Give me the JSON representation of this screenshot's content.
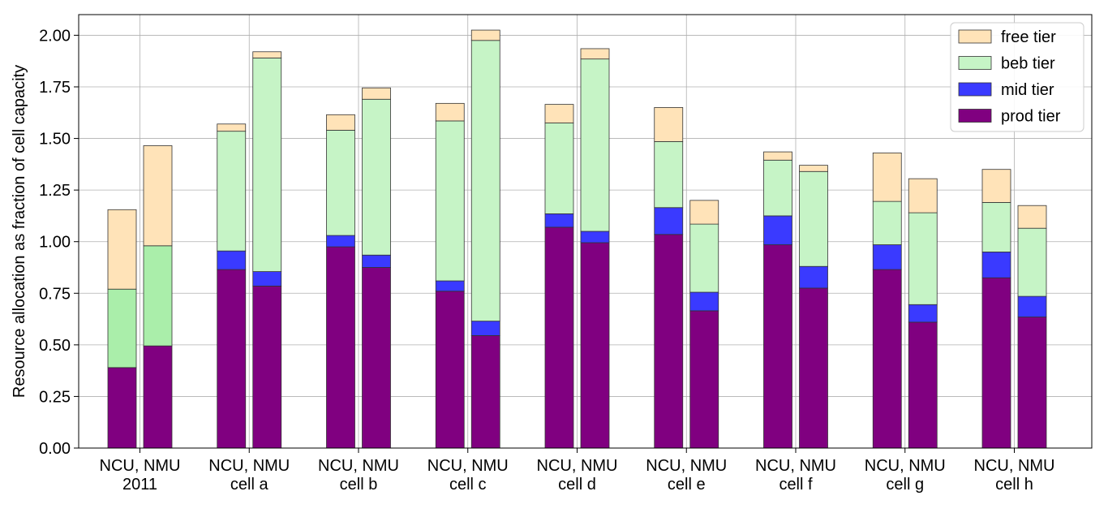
{
  "chart_data": {
    "type": "bar",
    "stacked": true,
    "grouped": true,
    "ylabel": "Resource allocation as fraction of cell capacity",
    "xlabel": "",
    "ylim": [
      0,
      2.1
    ],
    "yticks": [
      0,
      0.25,
      0.5,
      0.75,
      1.0,
      1.25,
      1.5,
      1.75,
      2.0
    ],
    "ytick_labels": [
      "0.00",
      "0.25",
      "0.50",
      "0.75",
      "1.00",
      "1.25",
      "1.50",
      "1.75",
      "2.00"
    ],
    "grid": true,
    "legend_position": "top-right",
    "group_labels": [
      "NCU, NMU",
      "NCU, NMU",
      "NCU, NMU",
      "NCU, NMU",
      "NCU, NMU",
      "NCU, NMU",
      "NCU, NMU",
      "NCU, NMU",
      "NCU, NMU"
    ],
    "categories": [
      "2011",
      "cell a",
      "cell b",
      "cell c",
      "cell d",
      "cell e",
      "cell f",
      "cell g",
      "cell h"
    ],
    "bars_per_group": [
      "NCU",
      "NMU"
    ],
    "series": [
      {
        "name": "prod tier",
        "color": "#800080",
        "NCU": [
          0.39,
          0.865,
          0.975,
          0.76,
          1.07,
          1.035,
          0.985,
          0.865,
          0.825
        ],
        "NMU": [
          0.495,
          0.785,
          0.875,
          0.545,
          0.995,
          0.665,
          0.775,
          0.61,
          0.635
        ]
      },
      {
        "name": "mid tier",
        "color": "#3a3aff",
        "NCU": [
          0.0,
          0.09,
          0.055,
          0.05,
          0.065,
          0.13,
          0.14,
          0.12,
          0.125
        ],
        "NMU": [
          0.0,
          0.07,
          0.06,
          0.07,
          0.055,
          0.09,
          0.105,
          0.085,
          0.1
        ]
      },
      {
        "name": "beb tier",
        "color": "#c6f4c6",
        "color_2011": "#aaeeaa",
        "NCU": [
          0.38,
          0.58,
          0.51,
          0.775,
          0.44,
          0.32,
          0.27,
          0.21,
          0.24
        ],
        "NMU": [
          0.485,
          1.035,
          0.755,
          1.36,
          0.835,
          0.33,
          0.46,
          0.445,
          0.33
        ]
      },
      {
        "name": "free tier",
        "color": "#ffe3b8",
        "NCU": [
          0.385,
          0.035,
          0.075,
          0.085,
          0.09,
          0.165,
          0.04,
          0.235,
          0.16
        ],
        "NMU": [
          0.485,
          0.03,
          0.055,
          0.05,
          0.05,
          0.115,
          0.03,
          0.165,
          0.11
        ]
      }
    ],
    "legend_order": [
      "free tier",
      "beb tier",
      "mid tier",
      "prod tier"
    ]
  }
}
